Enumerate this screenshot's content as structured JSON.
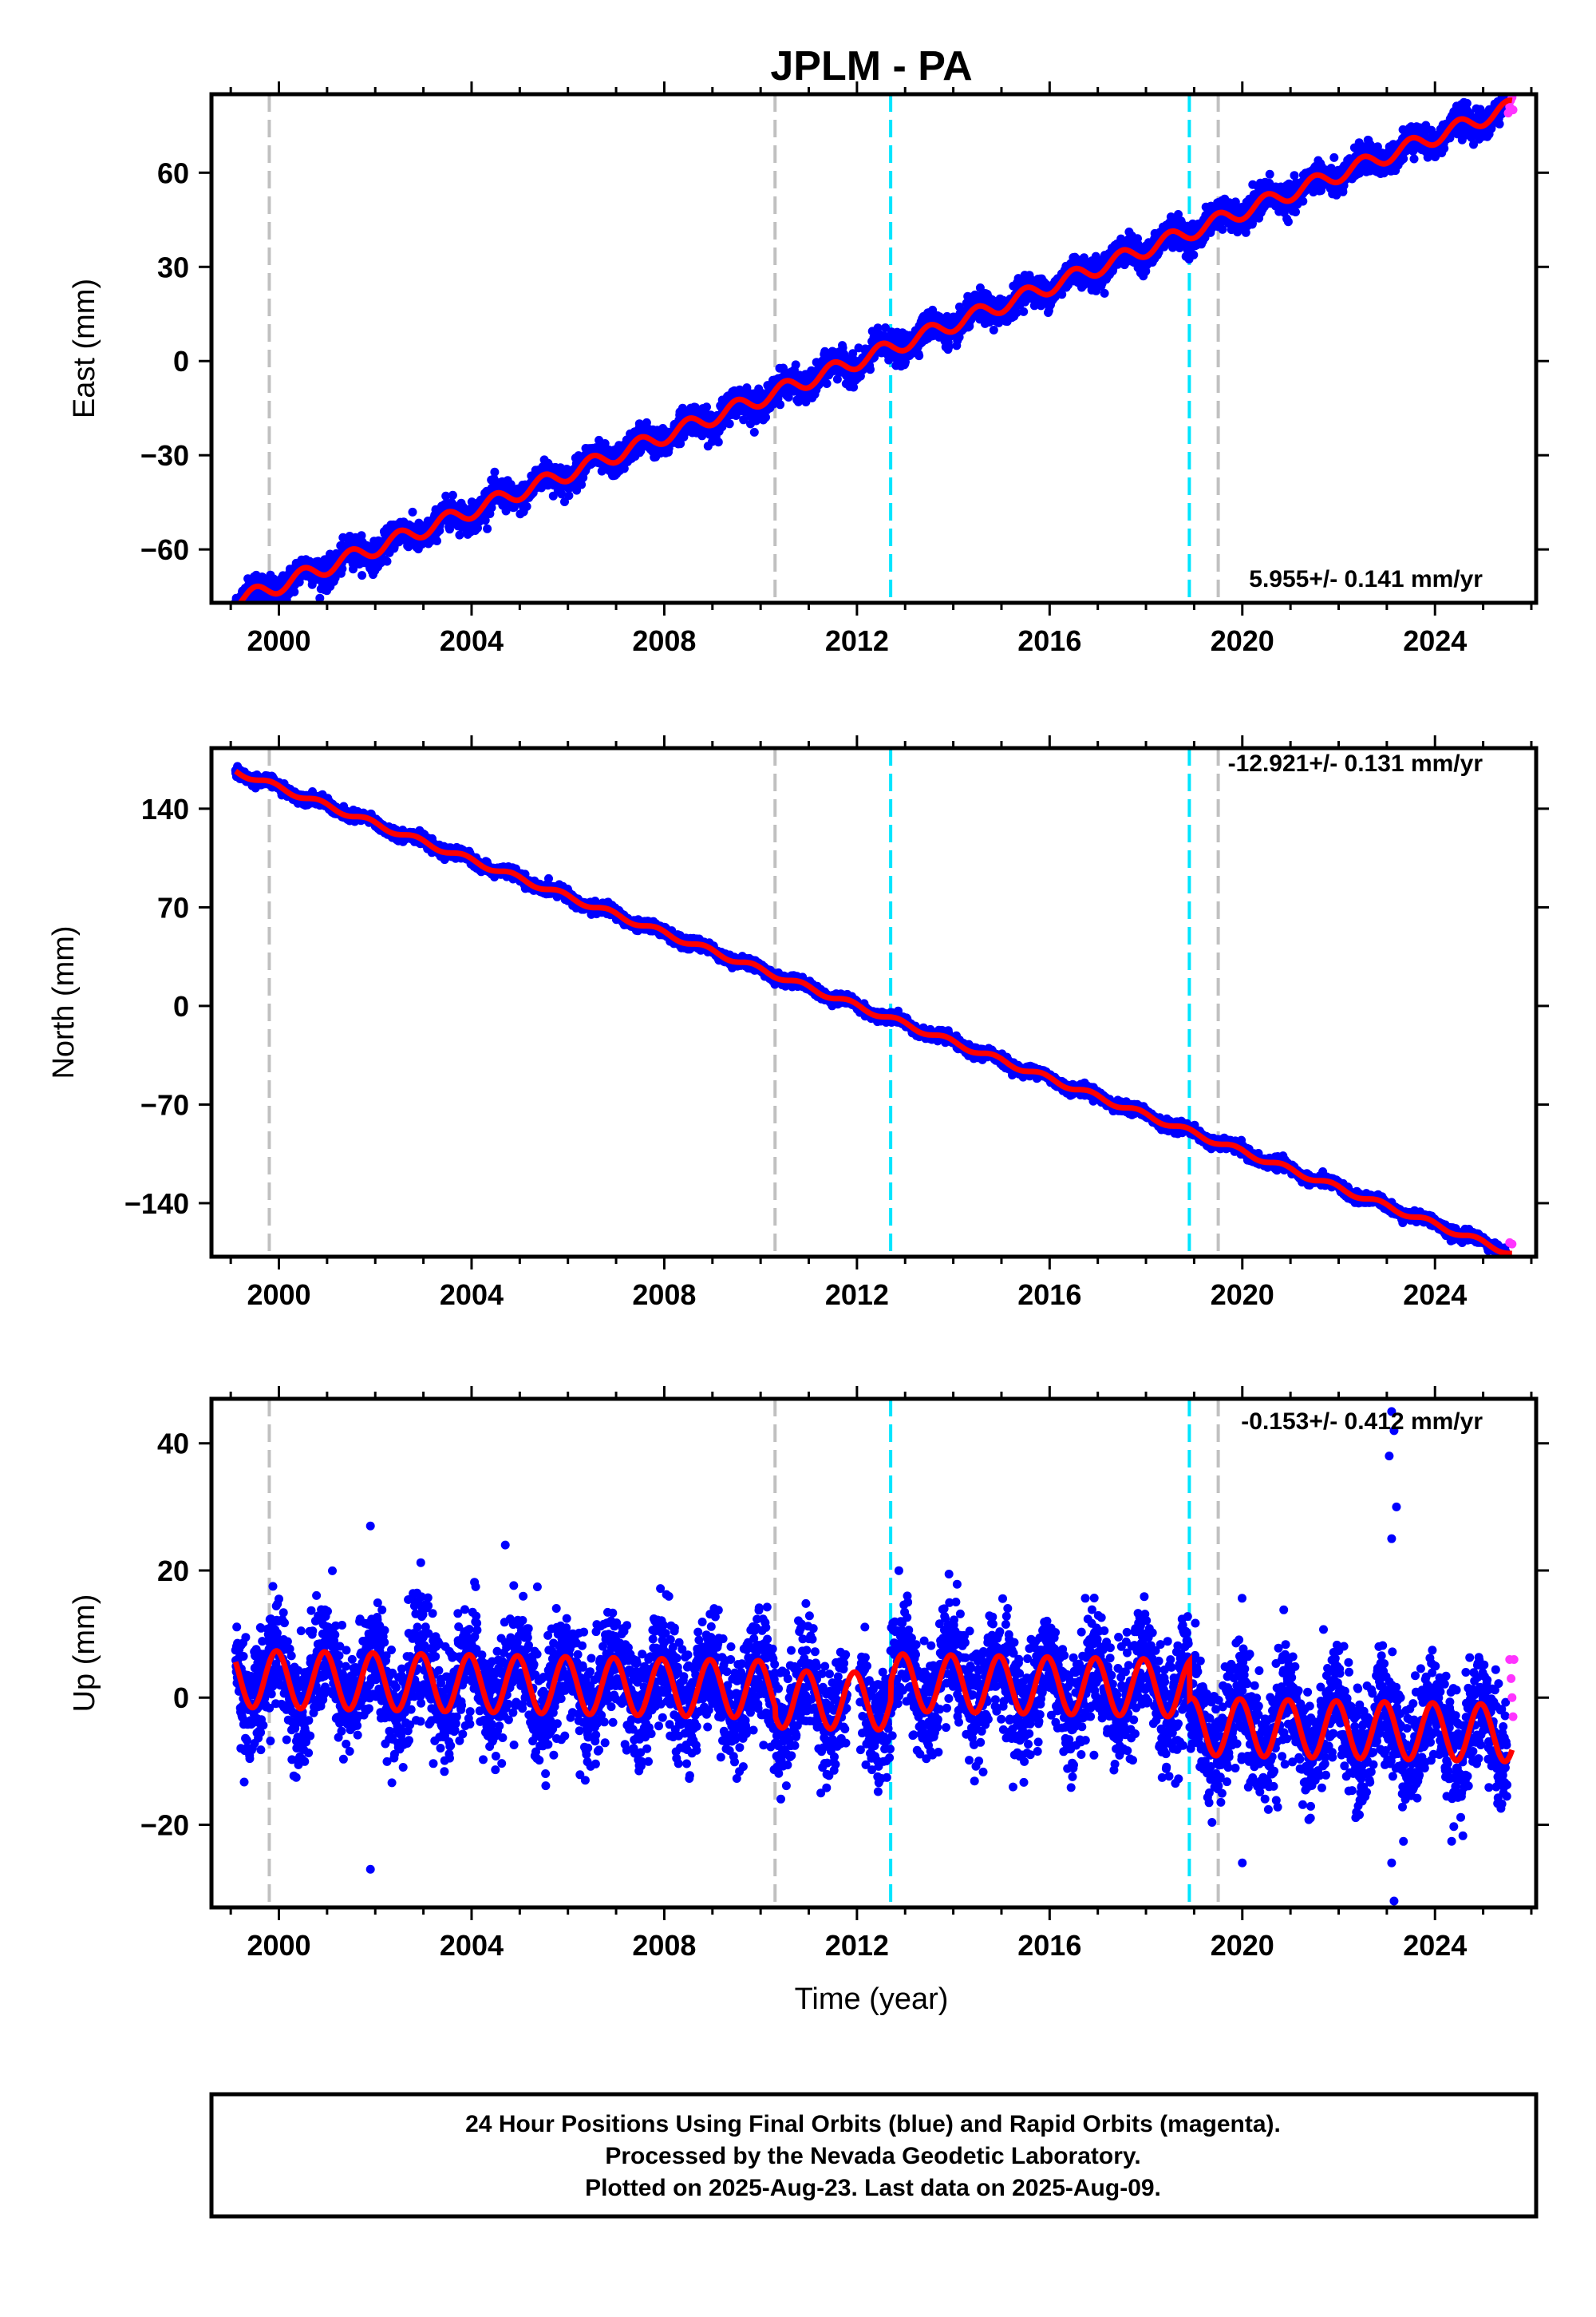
{
  "title": "JPLM - PA",
  "xlabel": "Time (year)",
  "x_ticks": [
    "2000",
    "2004",
    "2008",
    "2012",
    "2016",
    "2020",
    "2024"
  ],
  "colors": {
    "final_orbits": "#0000ff",
    "rapid_orbits": "#ff33ff",
    "model_fit": "#ff0000",
    "antenna_change": "#c0c0c0",
    "earthquake": "#00e5ff"
  },
  "footer": {
    "line1": "24 Hour Positions Using Final Orbits (blue) and Rapid Orbits (magenta).",
    "line2": "Processed by the Nevada Geodetic Laboratory.",
    "line3": "Plotted on 2025-Aug-23. Last data on 2025-Aug-09."
  },
  "chart_data": [
    {
      "type": "scatter",
      "ylabel": "East (mm)",
      "rate_label": "5.955+/- 0.141 mm/yr",
      "xlim": [
        1998.6,
        2026.1
      ],
      "ylim": [
        -77,
        85
      ],
      "y_ticks": [
        60,
        30,
        0,
        -30,
        -60
      ],
      "y_tick_labels": [
        "60",
        "30",
        "0",
        "−30",
        "−60"
      ],
      "x_range": [
        1999.1,
        2025.6
      ],
      "trend": {
        "slope": 5.955,
        "ref_year": 2012.0,
        "intercept": 0.0
      },
      "seasonal": {
        "amplitude": 2.5,
        "phase_year": 0.25
      },
      "noise_sd": 2.2,
      "rapid_points": [
        {
          "x": 2025.52,
          "y": 79
        },
        {
          "x": 2025.55,
          "y": 81
        },
        {
          "x": 2025.57,
          "y": 83
        },
        {
          "x": 2025.6,
          "y": 84
        },
        {
          "x": 2025.62,
          "y": 80
        }
      ],
      "antenna_changes": [
        1999.8,
        2010.3,
        2019.5
      ],
      "earthquakes": [
        2012.7,
        2018.9
      ]
    },
    {
      "type": "scatter",
      "ylabel": "North (mm)",
      "rate_label": "-12.921+/- 0.131 mm/yr",
      "xlim": [
        1998.6,
        2026.1
      ],
      "ylim": [
        -178,
        183
      ],
      "y_ticks": [
        140,
        70,
        0,
        -70,
        -140
      ],
      "y_tick_labels": [
        "140",
        "70",
        "0",
        "−70",
        "−140"
      ],
      "x_range": [
        1999.1,
        2025.6
      ],
      "trend": {
        "slope": -12.921,
        "ref_year": 2012.0,
        "intercept": 0.0
      },
      "seasonal": {
        "amplitude": 2.0,
        "phase_year": 0.6
      },
      "noise_sd": 1.8,
      "rapid_points": [
        {
          "x": 2025.55,
          "y": -168
        },
        {
          "x": 2025.6,
          "y": -169
        }
      ],
      "antenna_changes": [
        1999.8,
        2010.3,
        2019.5
      ],
      "earthquakes": [
        2012.7,
        2018.9
      ]
    },
    {
      "type": "scatter",
      "ylabel": "Up (mm)",
      "rate_label": "-0.153+/- 0.412 mm/yr",
      "xlim": [
        1998.6,
        2026.1
      ],
      "ylim": [
        -33,
        47
      ],
      "y_ticks": [
        40,
        20,
        0,
        -20
      ],
      "y_tick_labels": [
        "40",
        "20",
        "0",
        "−20"
      ],
      "x_range": [
        1999.1,
        2025.6
      ],
      "trend": {
        "slope": -0.153,
        "ref_year": 2012.0,
        "intercept": 1.0
      },
      "seasonal": {
        "amplitude": 4.5,
        "phase_year": 0.7
      },
      "offsets": [
        {
          "year": 2010.3,
          "value": -1.5
        },
        {
          "year": 2012.7,
          "value": 3.0
        },
        {
          "year": 2018.9,
          "value": -6.0
        }
      ],
      "noise_sd": 4.5,
      "rapid_points": [
        {
          "x": 2025.55,
          "y": 6
        },
        {
          "x": 2025.58,
          "y": 3
        },
        {
          "x": 2025.6,
          "y": 0
        },
        {
          "x": 2025.62,
          "y": -3
        },
        {
          "x": 2025.64,
          "y": 6
        }
      ],
      "outlier_points": [
        {
          "x": 2023.1,
          "y": 45
        },
        {
          "x": 2023.15,
          "y": 42
        },
        {
          "x": 2023.05,
          "y": 38
        },
        {
          "x": 2023.2,
          "y": 30
        },
        {
          "x": 2023.1,
          "y": 25
        },
        {
          "x": 2023.15,
          "y": -32
        },
        {
          "x": 2023.1,
          "y": -26
        },
        {
          "x": 2001.9,
          "y": 27
        },
        {
          "x": 2004.7,
          "y": 24
        },
        {
          "x": 2001.9,
          "y": -27
        },
        {
          "x": 2020.0,
          "y": -26
        }
      ],
      "antenna_changes": [
        1999.8,
        2010.3,
        2019.5
      ],
      "earthquakes": [
        2012.7,
        2018.9
      ]
    }
  ]
}
